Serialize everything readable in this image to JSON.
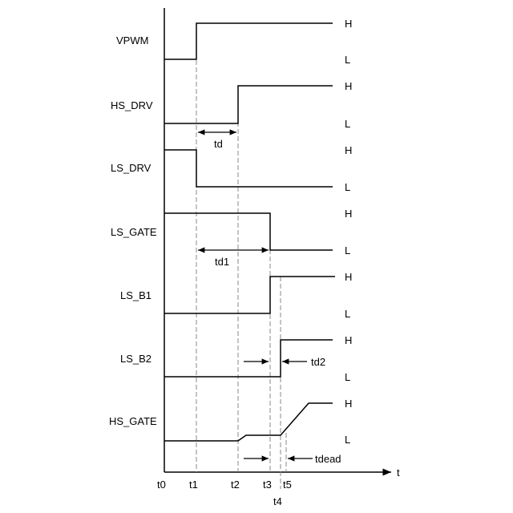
{
  "signals": [
    {
      "name": "VPWM",
      "high": "H",
      "low": "L"
    },
    {
      "name": "HS_DRV",
      "high": "H",
      "low": "L"
    },
    {
      "name": "LS_DRV",
      "high": "H",
      "low": "L"
    },
    {
      "name": "LS_GATE",
      "high": "H",
      "low": "L"
    },
    {
      "name": "LS_B1",
      "high": "H",
      "low": "L"
    },
    {
      "name": "LS_B2",
      "high": "H",
      "low": "L"
    },
    {
      "name": "HS_GATE",
      "high": "H",
      "low": "L"
    }
  ],
  "time_axis": {
    "label": "t",
    "ticks": [
      "t0",
      "t1",
      "t2",
      "t3",
      "t4",
      "t5"
    ]
  },
  "delays": {
    "td": "td",
    "td1": "td1",
    "td2": "td2",
    "tdead": "tdead"
  }
}
